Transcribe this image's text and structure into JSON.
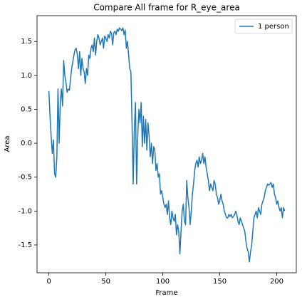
{
  "chart_data": {
    "type": "line",
    "title": "Compare All frame for R_eye_area",
    "xlabel": "Frame",
    "ylabel": "Area",
    "x": [
      0,
      1,
      2,
      3,
      4,
      5,
      6,
      7,
      8,
      9,
      10,
      11,
      12,
      13,
      14,
      15,
      16,
      17,
      18,
      19,
      20,
      21,
      22,
      23,
      24,
      25,
      26,
      27,
      28,
      29,
      30,
      31,
      32,
      33,
      34,
      35,
      36,
      37,
      38,
      39,
      40,
      41,
      42,
      43,
      44,
      45,
      46,
      47,
      48,
      49,
      50,
      51,
      52,
      53,
      54,
      55,
      56,
      57,
      58,
      59,
      60,
      61,
      62,
      63,
      64,
      65,
      66,
      67,
      68,
      69,
      70,
      71,
      72,
      73,
      74,
      75,
      76,
      77,
      78,
      79,
      80,
      81,
      82,
      83,
      84,
      85,
      86,
      87,
      88,
      89,
      90,
      91,
      92,
      93,
      94,
      95,
      96,
      97,
      98,
      99,
      100,
      101,
      102,
      103,
      104,
      105,
      106,
      107,
      108,
      109,
      110,
      111,
      112,
      113,
      114,
      115,
      116,
      117,
      118,
      119,
      120,
      121,
      122,
      123,
      124,
      125,
      126,
      127,
      128,
      129,
      130,
      131,
      132,
      133,
      134,
      135,
      136,
      137,
      138,
      139,
      140,
      141,
      142,
      143,
      144,
      145,
      146,
      147,
      148,
      149,
      150,
      151,
      152,
      153,
      154,
      155,
      156,
      157,
      158,
      159,
      160,
      161,
      162,
      163,
      164,
      165,
      166,
      167,
      168,
      169,
      170,
      171,
      172,
      173,
      174,
      175,
      176,
      177,
      178,
      179,
      180,
      181,
      182,
      183,
      184,
      185,
      186,
      187,
      188,
      189,
      190,
      191,
      192,
      193,
      194,
      195,
      196,
      197,
      198,
      199,
      200,
      201,
      202,
      203,
      204,
      205,
      206,
      207
    ],
    "series": [
      {
        "name": "1 person",
        "color": "#1f77b4",
        "values": [
          0.77,
          0.4,
          0.1,
          -0.15,
          0.05,
          -0.45,
          -0.5,
          -0.2,
          0.8,
          0.0,
          0.6,
          0.8,
          0.55,
          1.22,
          1.0,
          0.9,
          0.75,
          0.8,
          0.78,
          0.95,
          1.1,
          1.2,
          1.3,
          1.38,
          1.4,
          1.3,
          1.1,
          1.35,
          1.0,
          1.25,
          1.1,
          1.05,
          0.88,
          1.1,
          1.0,
          1.3,
          1.25,
          1.4,
          1.45,
          1.35,
          1.55,
          1.3,
          1.5,
          1.6,
          1.55,
          1.45,
          1.5,
          1.55,
          1.4,
          1.58,
          1.55,
          1.5,
          1.6,
          1.55,
          1.65,
          1.62,
          1.45,
          1.63,
          1.65,
          1.6,
          1.68,
          1.65,
          1.7,
          1.68,
          1.66,
          1.7,
          1.6,
          1.67,
          1.4,
          1.5,
          1.3,
          1.1,
          1.05,
          0.3,
          -0.6,
          0.2,
          0.6,
          -0.6,
          0.1,
          0.5,
          0.3,
          0.6,
          -0.05,
          0.4,
          0.0,
          0.35,
          -0.1,
          0.3,
          0.1,
          -0.2,
          0.0,
          -0.3,
          -0.05,
          -0.1,
          -0.4,
          -0.3,
          -0.5,
          -0.45,
          -0.75,
          -0.7,
          -0.8,
          -0.9,
          -0.95,
          -0.9,
          -1.05,
          -0.85,
          -1.1,
          -1.2,
          -1.0,
          -1.1,
          -1.15,
          -1.05,
          -1.35,
          -1.2,
          -1.3,
          -1.63,
          -1.3,
          -1.0,
          -0.9,
          -1.15,
          -1.2,
          -0.55,
          -0.8,
          -0.95,
          -1.2,
          -1.0,
          -0.75,
          -0.6,
          -0.4,
          -0.3,
          -0.25,
          -0.35,
          -0.2,
          -0.3,
          -0.25,
          -0.15,
          -0.3,
          -0.2,
          -0.35,
          -0.45,
          -0.55,
          -0.7,
          -0.6,
          -0.65,
          -0.7,
          -0.55,
          -0.6,
          -0.75,
          -0.8,
          -0.9,
          -0.85,
          -0.75,
          -0.85,
          -0.9,
          -1.0,
          -1.05,
          -1.1,
          -1.1,
          -1.05,
          -1.08,
          -1.05,
          -1.1,
          -1.08,
          -1.05,
          -1.0,
          -1.05,
          -1.15,
          -1.2,
          -1.1,
          -1.15,
          -1.2,
          -1.25,
          -1.3,
          -1.45,
          -1.55,
          -1.6,
          -1.75,
          -1.6,
          -1.5,
          -1.3,
          -1.1,
          -1.05,
          -1.0,
          -1.1,
          -0.95,
          -1.0,
          -1.05,
          -0.9,
          -0.85,
          -0.8,
          -0.7,
          -0.65,
          -0.6,
          -0.62,
          -0.6,
          -0.58,
          -0.65,
          -0.6,
          -0.75,
          -0.8,
          -0.9,
          -0.85,
          -0.95,
          -1.0,
          -0.95,
          -1.1,
          -0.95,
          -1.0
        ]
      }
    ],
    "xlim": [
      -10.4,
      217.2
    ],
    "xticks": [
      0,
      50,
      100,
      150,
      200
    ],
    "ylim": [
      -1.91,
      1.88
    ],
    "yticks": [
      -1.5,
      {
        "value": -1.0,
        "label": "-1.0"
      },
      -0.5,
      {
        "value": 0.0,
        "label": "0.0"
      },
      0.5,
      {
        "value": 1.0,
        "label": "1.0"
      },
      1.5
    ],
    "legend": "upper right",
    "grid": false
  }
}
